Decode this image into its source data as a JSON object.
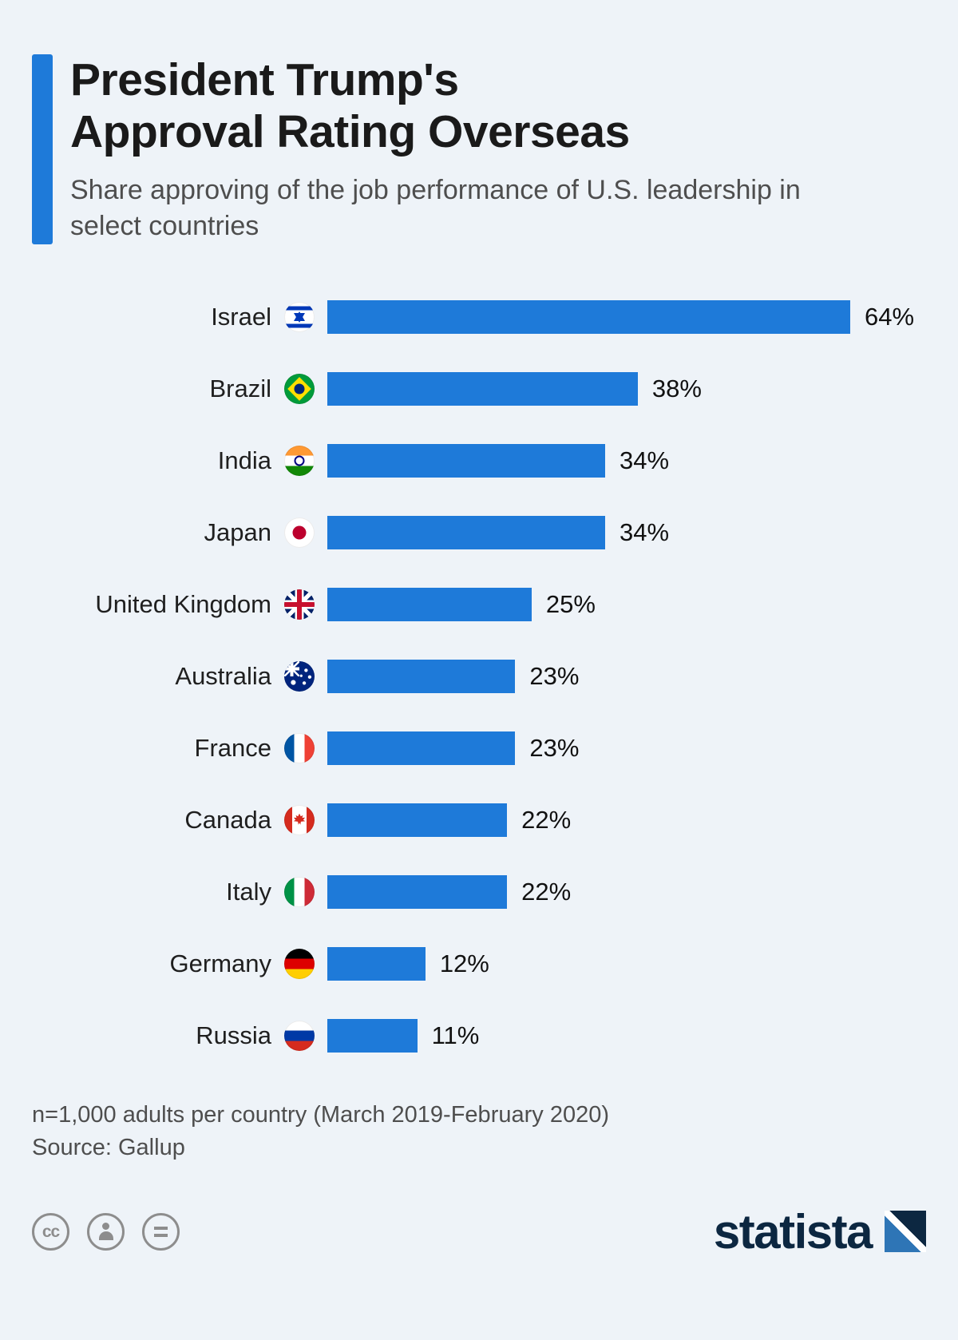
{
  "header": {
    "title_line1": "President Trump's",
    "title_line2": "Approval Rating Overseas",
    "subtitle": "Share approving of the job performance of U.S. leadership in select countries"
  },
  "chart_data": {
    "type": "bar",
    "orientation": "horizontal",
    "title": "President Trump's Approval Rating Overseas",
    "subtitle": "Share approving of the job performance of U.S. leadership in select countries",
    "categories": [
      "Israel",
      "Brazil",
      "India",
      "Japan",
      "United Kingdom",
      "Australia",
      "France",
      "Canada",
      "Italy",
      "Germany",
      "Russia"
    ],
    "values": [
      64,
      38,
      34,
      34,
      25,
      23,
      23,
      22,
      22,
      12,
      11
    ],
    "flags": [
      "israel",
      "brazil",
      "india",
      "japan",
      "uk",
      "australia",
      "france",
      "canada",
      "italy",
      "germany",
      "russia"
    ],
    "value_suffix": "%",
    "xmax": 64,
    "bar_color": "#1e7ad9",
    "grid": false,
    "legend": false
  },
  "footer": {
    "note": "n=1,000 adults per country (March 2019-February 2020)",
    "source": "Source: Gallup",
    "license_cc": "cc",
    "brand": "statista"
  },
  "colors": {
    "accent": "#1e7ad9",
    "background": "#eef3f8",
    "bar": "#1e7ad9",
    "brand_navy": "#0c2741",
    "license_gray": "#8d8d8d"
  }
}
